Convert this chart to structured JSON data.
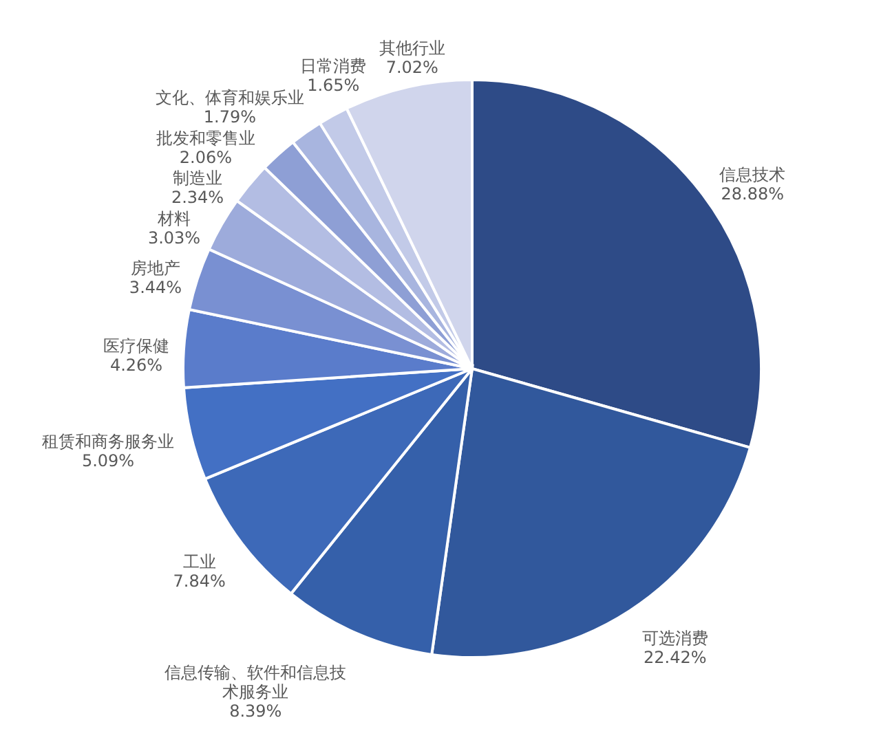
{
  "chart_data": {
    "type": "pie",
    "categories": [
      "信息技术",
      "可选消费",
      "信息传输、软件和信息技术服务业",
      "工业",
      "租赁和商务服务业",
      "医疗保健",
      "房地产",
      "材料",
      "制造业",
      "批发和零售业",
      "文化、体育和娱乐业",
      "日常消费",
      "其他行业"
    ],
    "values": [
      28.88,
      22.42,
      8.39,
      7.84,
      5.09,
      4.26,
      3.44,
      3.03,
      2.34,
      2.06,
      1.79,
      1.65,
      7.02
    ],
    "colors": [
      "#2e4b87",
      "#31589c",
      "#3560aa",
      "#3d69b8",
      "#4370c4",
      "#5a7ccb",
      "#7990d2",
      "#9dabdb",
      "#b3bde3",
      "#8e9fd5",
      "#a8b5df",
      "#c2cae8",
      "#d0d5ec"
    ],
    "value_labels": [
      "28.88%",
      "22.42%",
      "8.39%",
      "7.84%",
      "5.09%",
      "4.26%",
      "3.44%",
      "3.03%",
      "2.34%",
      "2.06%",
      "1.79%",
      "1.65%",
      "7.02%"
    ]
  }
}
